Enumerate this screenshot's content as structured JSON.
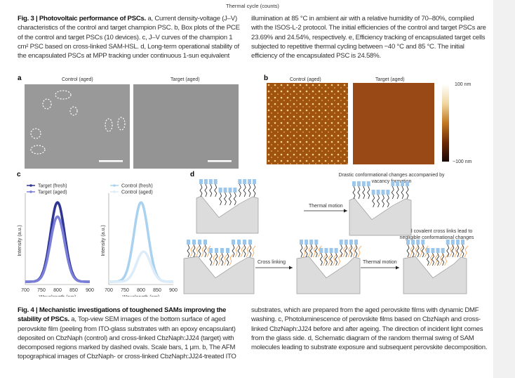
{
  "top_axis_label": "Thermal cycle (counts)",
  "fig3": {
    "title": "Fig. 3 | Photovoltaic performance of PSCs.",
    "col1": "a, Current density-voltage (J–V) characteristics of the control and target champion PSC. b, Box plots of the PCE of the control and target PSCs (10 devices). c, J–V curves of the champion 1 cm² PSC based on cross-linked SAM-HSL. d, Long-term operational stability of the encapsulated PSCs at MPP tracking under continuous 1-sun equivalent",
    "col2": "illumination at 85 °C in ambient air with a relative humidity of 70–80%, complied with the ISOS-L-2 protocol. The initial efficiencies of the control and target PSCs are 23.69% and 24.54%, respectively. e, Efficiency tracking of encapsulated target cells subjected to repetitive thermal cycling between −40 °C and 85 °C. The initial efficiency of the encapsulated PSC is 24.58%."
  },
  "panels": {
    "a": {
      "label": "a",
      "left": "Control (aged)",
      "right": "Target (aged)"
    },
    "b": {
      "label": "b",
      "left": "Control (aged)",
      "right": "Target (aged)",
      "scale_max": "100 nm",
      "scale_min": "−100 nm"
    },
    "c": {
      "label": "c"
    },
    "d": {
      "label": "d",
      "top_note": "Drastic conformational changes accompanied by vacancy formation",
      "bottom_note": "Rigid covalent cross links lead to negligible conformational changes",
      "arrow1": "Thermal motion",
      "arrow2": "Cross linking",
      "arrow3": "Thermal motion"
    }
  },
  "chart_data": [
    {
      "type": "line",
      "xlabel": "Wavelength (nm)",
      "ylabel": "Intensity (a.u.)",
      "xlim": [
        700,
        900
      ],
      "xticks": [
        "700",
        "750",
        "800",
        "850",
        "900"
      ],
      "series": [
        {
          "name": "Target (fresh)",
          "color": "#2e3592",
          "peak_x": 800,
          "peak_y": 1.0
        },
        {
          "name": "Target (aged)",
          "color": "#7b7fd8",
          "peak_x": 800,
          "peak_y": 0.82
        }
      ]
    },
    {
      "type": "line",
      "xlabel": "Wavelength (nm)",
      "ylabel": "Intensity (a.u.)",
      "xlim": [
        700,
        900
      ],
      "xticks": [
        "700",
        "750",
        "800",
        "850",
        "900"
      ],
      "series": [
        {
          "name": "Control (fresh)",
          "color": "#a9d2f0",
          "peak_x": 800,
          "peak_y": 1.0
        },
        {
          "name": "Control (aged)",
          "color": "#dcecf8",
          "peak_x": 808,
          "peak_y": 0.38
        }
      ]
    }
  ],
  "fig4": {
    "title": "Fig. 4 | Mechanistic investigations of toughened SAMs improving the stability of PSCs.",
    "col1": "a, Top-view SEM images of the bottom surface of aged perovskite film (peeling from ITO-glass substrates with an epoxy encapsulant) deposited on CbzNaph (control) and cross-linked CbzNaph:JJ24 (target) with decomposed regions marked by dashed ovals. Scale bars, 1 μm. b, The AFM topographical images of CbzNaph- or cross-linked CbzNaph:JJ24-treated ITO",
    "col2": "substrates, which are prepared from the aged perovskite films with dynamic DMF washing. c, Photoluminescence of perovskite films based on CbzNaph and cross-linked CbzNaph:JJ24 before and after ageing. The direction of incident light comes from the glass side. d, Schematic diagram of the random thermal swing of SAM molecules leading to substrate exposure and subsequent perovskite decomposition."
  }
}
